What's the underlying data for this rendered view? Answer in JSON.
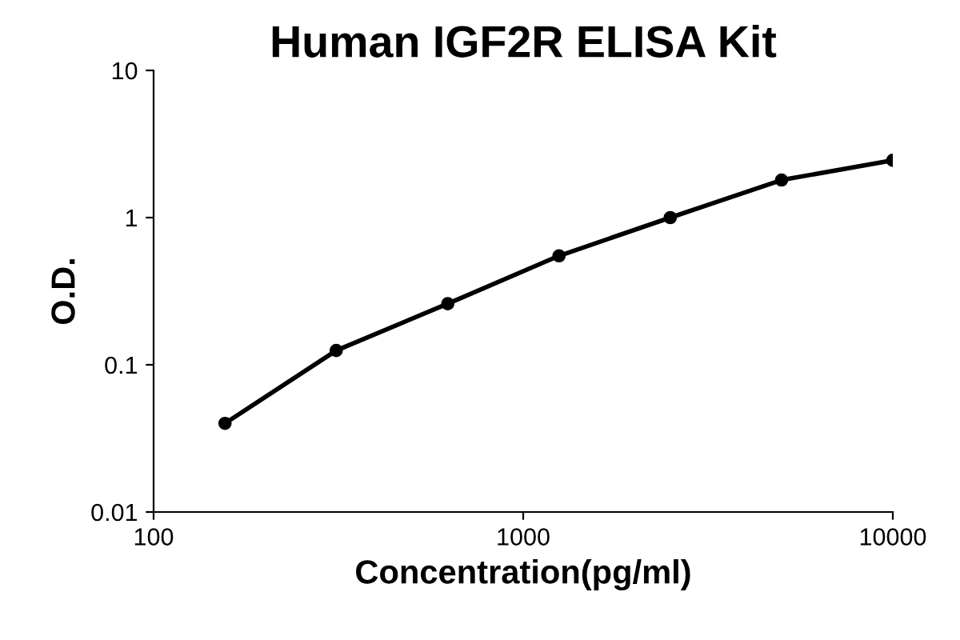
{
  "chart_data": {
    "type": "line",
    "title": "Human IGF2R ELISA Kit",
    "xlabel": "Concentration(pg/ml)",
    "ylabel": "O.D.",
    "log": "xy",
    "xlim": [
      100,
      10000
    ],
    "ylim": [
      0.01,
      10
    ],
    "xticks": [
      100,
      1000,
      10000
    ],
    "yticks": [
      0.01,
      0.1,
      1,
      10
    ],
    "x": [
      156,
      312,
      625,
      1250,
      2500,
      5000,
      10000
    ],
    "series": [
      {
        "color": "#000000",
        "values": [
          0.04,
          0.125,
          0.26,
          0.55,
          1.0,
          1.8,
          2.45
        ]
      }
    ],
    "marker": "circle",
    "line_style": "solid",
    "grid": false,
    "legend": false
  }
}
